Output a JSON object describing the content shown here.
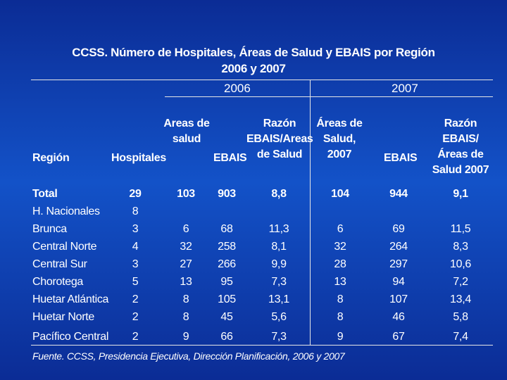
{
  "title_line1": "CCSS. Número de Hospitales, Áreas de Salud y EBAIS por Región",
  "title_line2": "2006 y 2007",
  "years": {
    "y2006": "2006",
    "y2007": "2007"
  },
  "headers": {
    "region": "Región",
    "hospitales": "Hospitales",
    "areas_2006": [
      "Areas de",
      "salud"
    ],
    "ebais_2006": "EBAIS",
    "razon_2006": [
      "Razón",
      "EBAIS/Areas",
      "de Salud"
    ],
    "areas_2007": [
      "Áreas de",
      "Salud, 2007"
    ],
    "ebais_2007": "EBAIS",
    "razon_2007": [
      "Razón EBAIS/",
      "Áreas de",
      "Salud 2007"
    ]
  },
  "rows": [
    {
      "region": "Total",
      "hospitales": "29",
      "areas2006": "103",
      "ebais2006": "903",
      "razon2006": "8,8",
      "areas2007": "104",
      "ebais2007": "944",
      "razon2007": "9,1"
    },
    {
      "region": "H. Nacionales",
      "hospitales": "8",
      "areas2006": "",
      "ebais2006": "",
      "razon2006": "",
      "areas2007": "",
      "ebais2007": "",
      "razon2007": ""
    },
    {
      "region": "Brunca",
      "hospitales": "3",
      "areas2006": "6",
      "ebais2006": "68",
      "razon2006": "11,3",
      "areas2007": "6",
      "ebais2007": "69",
      "razon2007": "11,5"
    },
    {
      "region": "Central Norte",
      "hospitales": "4",
      "areas2006": "32",
      "ebais2006": "258",
      "razon2006": "8,1",
      "areas2007": "32",
      "ebais2007": "264",
      "razon2007": "8,3"
    },
    {
      "region": "Central Sur",
      "hospitales": "3",
      "areas2006": "27",
      "ebais2006": "266",
      "razon2006": "9,9",
      "areas2007": "28",
      "ebais2007": "297",
      "razon2007": "10,6"
    },
    {
      "region": "Chorotega",
      "hospitales": "5",
      "areas2006": "13",
      "ebais2006": "95",
      "razon2006": "7,3",
      "areas2007": "13",
      "ebais2007": "94",
      "razon2007": "7,2"
    },
    {
      "region": "Huetar Atlántica",
      "hospitales": "2",
      "areas2006": "8",
      "ebais2006": "105",
      "razon2006": "13,1",
      "areas2007": "8",
      "ebais2007": "107",
      "razon2007": "13,4"
    },
    {
      "region": "Huetar Norte",
      "hospitales": "2",
      "areas2006": "8",
      "ebais2006": "45",
      "razon2006": "5,6",
      "areas2007": "8",
      "ebais2007": "46",
      "razon2007": "5,8"
    },
    {
      "region": "Pacífico Central",
      "hospitales": "2",
      "areas2006": "9",
      "ebais2006": "66",
      "razon2006": "7,3",
      "areas2007": "9",
      "ebais2007": "67",
      "razon2007": "7,4"
    }
  ],
  "source": "Fuente. CCSS, Presidencia Ejecutiva, Dirección Planificación, 2006 y 2007"
}
